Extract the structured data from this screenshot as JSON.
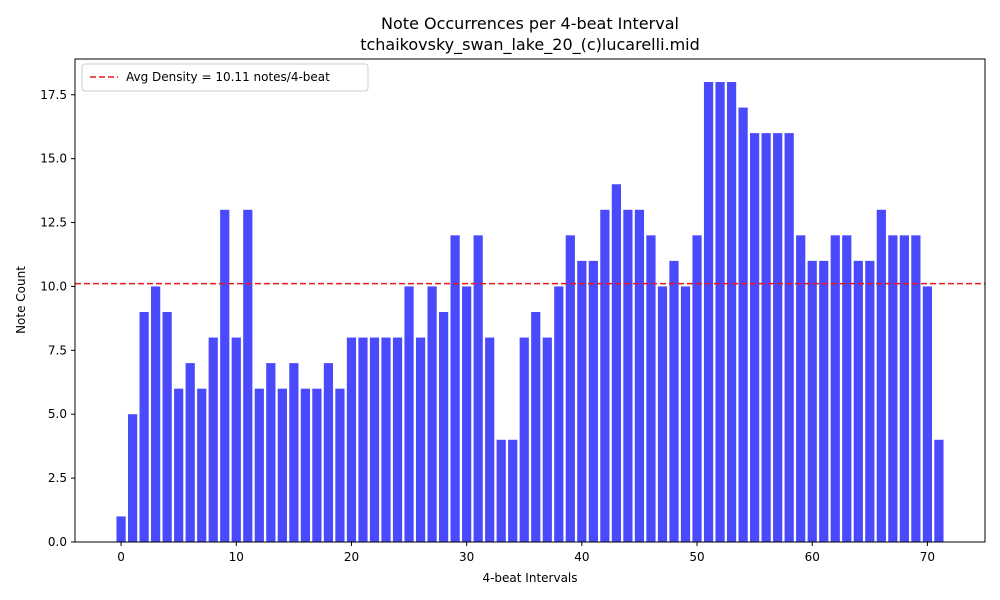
{
  "chart_data": {
    "type": "bar",
    "title": "Note Occurrences per 4-beat Interval",
    "subtitle": "tchaikovsky_swan_lake_20_(c)lucarelli.mid",
    "xlabel": "4-beat Intervals",
    "ylabel": "Note Count",
    "xlim": [
      -4.0,
      75.0
    ],
    "ylim": [
      0,
      18.9
    ],
    "xticks": [
      0,
      10,
      20,
      30,
      40,
      50,
      60,
      70
    ],
    "yticks": [
      0.0,
      2.5,
      5.0,
      7.5,
      10.0,
      12.5,
      15.0,
      17.5
    ],
    "x": [
      0,
      1,
      2,
      3,
      4,
      5,
      6,
      7,
      8,
      9,
      10,
      11,
      12,
      13,
      14,
      15,
      16,
      17,
      18,
      19,
      20,
      21,
      22,
      23,
      24,
      25,
      26,
      27,
      28,
      29,
      30,
      31,
      32,
      33,
      34,
      35,
      36,
      37,
      38,
      39,
      40,
      41,
      42,
      43,
      44,
      45,
      46,
      47,
      48,
      49,
      50,
      51,
      52,
      53,
      54,
      55,
      56,
      57,
      58,
      59,
      60,
      61,
      62,
      63,
      64,
      65,
      66,
      67,
      68,
      69,
      70,
      71
    ],
    "values": [
      1,
      5,
      9,
      10,
      9,
      6,
      7,
      6,
      8,
      13,
      8,
      13,
      6,
      7,
      6,
      7,
      6,
      6,
      7,
      6,
      8,
      8,
      8,
      8,
      8,
      10,
      8,
      10,
      9,
      12,
      10,
      12,
      8,
      4,
      4,
      8,
      9,
      8,
      10,
      12,
      11,
      11,
      13,
      14,
      13,
      13,
      12,
      10,
      11,
      10,
      12,
      18,
      18,
      18,
      17,
      16,
      16,
      16,
      16,
      12,
      11,
      11,
      12,
      12,
      11,
      11,
      13,
      12,
      12,
      12,
      10,
      4
    ],
    "bar_color": "#4a4afc",
    "grid": false,
    "reference_line": {
      "label": "Avg Density = 10.11 notes/4-beat",
      "value": 10.11,
      "color": "#e8161a",
      "style": "dashed"
    },
    "legend_position": "upper-left"
  }
}
